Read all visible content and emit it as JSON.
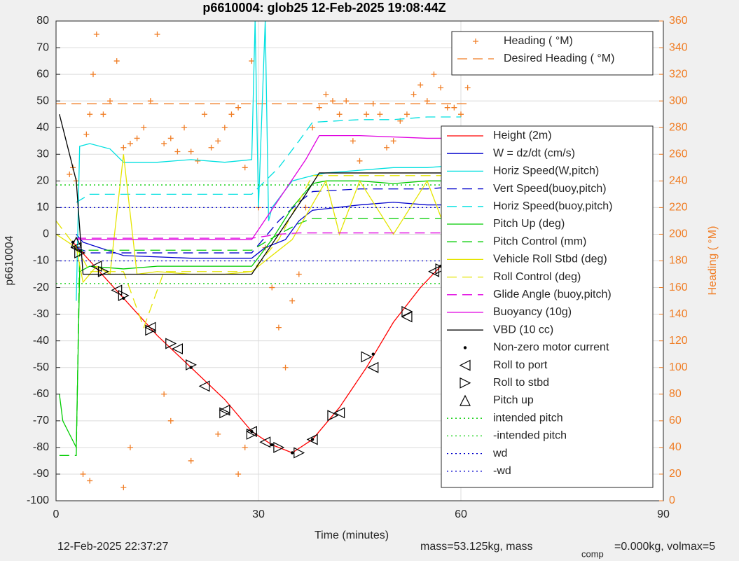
{
  "chart_data": {
    "type": "line",
    "title": "p6610004: glob25 12-Feb-2025 19:08:44Z",
    "x_label": "Time (minutes)",
    "y_label": "p6610004",
    "y2_label": "Heading ( °M)",
    "xlim": [
      0,
      90
    ],
    "xticks": [
      0,
      30,
      60,
      90
    ],
    "ylim": [
      -100,
      80
    ],
    "yticks": [
      -100,
      -90,
      -80,
      -70,
      -60,
      -50,
      -40,
      -30,
      -20,
      -10,
      0,
      10,
      20,
      30,
      40,
      50,
      60,
      70,
      80
    ],
    "y2lim": [
      0,
      360
    ],
    "y2ticks": [
      0,
      20,
      40,
      60,
      80,
      100,
      120,
      140,
      160,
      180,
      200,
      220,
      240,
      260,
      280,
      300,
      320,
      340,
      360
    ],
    "grid": true,
    "legend": "northeast",
    "footer": [
      "12-Feb-2025 22:37:27",
      "mass=53.125kg, mass",
      "comp",
      "=0.000kg, volmax=5"
    ],
    "series": [
      {
        "name": "Heading ( °M)",
        "color": "#f07e26",
        "style": "plus",
        "axis": "y2",
        "x": [
          2,
          2.5,
          3,
          4.5,
          5,
          5.5,
          6,
          7,
          8,
          9,
          10,
          11,
          12,
          13,
          14,
          15,
          16,
          17,
          18,
          19,
          20,
          21,
          22,
          23,
          24,
          25,
          26,
          27,
          28,
          29,
          30,
          31,
          32,
          33,
          34,
          35,
          36,
          37,
          38,
          39,
          40,
          41,
          42,
          43,
          44,
          45,
          46,
          47,
          48,
          49,
          50,
          51,
          52,
          53,
          54,
          55,
          56,
          57,
          58,
          59,
          60,
          61,
          4,
          5,
          10,
          11,
          16,
          17,
          20,
          24,
          27,
          28
        ],
        "values": [
          245,
          250,
          240,
          275,
          290,
          320,
          350,
          290,
          300,
          330,
          265,
          268,
          272,
          280,
          300,
          350,
          268,
          272,
          262,
          280,
          262,
          255,
          290,
          265,
          270,
          280,
          290,
          295,
          250,
          330,
          220,
          190,
          160,
          130,
          100,
          150,
          170,
          220,
          280,
          295,
          305,
          300,
          290,
          300,
          270,
          255,
          290,
          298,
          290,
          265,
          270,
          285,
          290,
          305,
          312,
          300,
          320,
          310,
          295,
          295,
          290,
          310,
          20,
          15,
          10,
          40,
          80,
          60,
          30,
          50,
          20,
          40
        ]
      },
      {
        "name": "Desired Heading (    °M)",
        "color": "#f07e26",
        "style": "dashed",
        "axis": "y2",
        "x": [
          0,
          61
        ],
        "values": [
          298,
          298
        ]
      },
      {
        "name": "Height (2m)",
        "color": "#ff0000",
        "style": "solid",
        "x": [
          2.5,
          5,
          10,
          15,
          20,
          25,
          29,
          32,
          35,
          38,
          42,
          46,
          50,
          54,
          57,
          60
        ],
        "values": [
          -3,
          -10,
          -24,
          -38,
          -50,
          -62,
          -74,
          -79,
          -82,
          -77,
          -65,
          -50,
          -33,
          -20,
          -12,
          -2
        ]
      },
      {
        "name": "W = dz/dt (cm/s)",
        "color": "#0000cc",
        "style": "solid",
        "x": [
          3,
          4,
          10,
          20,
          29,
          31,
          34,
          36,
          38,
          45,
          50,
          55,
          60
        ],
        "values": [
          0,
          -3,
          -8,
          -9,
          -9,
          -5,
          -2,
          5,
          9,
          11,
          12,
          11,
          11
        ]
      },
      {
        "name": "Horiz Speed(W,pitch)",
        "color": "#00e0e0",
        "style": "solid",
        "x": [
          3,
          3.5,
          5,
          8,
          10,
          15,
          20,
          25,
          29,
          29.5,
          30,
          31,
          31.5,
          32,
          35,
          38,
          40,
          45,
          50,
          55,
          60
        ],
        "values": [
          -25,
          33,
          34,
          32,
          27,
          27,
          28,
          27,
          28,
          80,
          10,
          80,
          5,
          10,
          20,
          22,
          23,
          24,
          25,
          25,
          26
        ]
      },
      {
        "name": "Vert Speed(buoy,pitch)",
        "color": "#0000cc",
        "style": "dashed",
        "x": [
          3,
          5,
          15,
          29,
          33,
          36,
          38,
          45,
          50,
          55,
          60
        ],
        "values": [
          -5,
          -7,
          -7,
          -7,
          5,
          12,
          16,
          17,
          17,
          17,
          18
        ]
      },
      {
        "name": "Horiz Speed(buoy,pitch)",
        "color": "#00e0e0",
        "style": "dashed",
        "x": [
          3,
          5,
          15,
          29,
          33,
          36,
          38,
          45,
          50,
          55,
          60
        ],
        "values": [
          12,
          15,
          15,
          15,
          25,
          35,
          42,
          43,
          43,
          44,
          44
        ]
      },
      {
        "name": "Pitch Up (deg)",
        "color": "#00cc00",
        "style": "solid",
        "x": [
          0.5,
          1,
          2,
          3,
          3.5,
          5,
          10,
          15,
          20,
          25,
          29,
          32,
          35,
          38,
          40,
          45,
          50,
          55,
          60
        ],
        "values": [
          -60,
          -70,
          -75,
          -80,
          -14,
          -12,
          -13,
          -12,
          -12,
          -12,
          -12,
          -2,
          10,
          19,
          20,
          20,
          19,
          20,
          20
        ]
      },
      {
        "name": "Pitch Control (mm)",
        "color": "#00cc00",
        "style": "dashed",
        "x": [
          0.5,
          3,
          3.5,
          5,
          29,
          33,
          36,
          38,
          60
        ],
        "values": [
          -83,
          -83,
          -6,
          -6,
          -6,
          0,
          4,
          6,
          6
        ]
      },
      {
        "name": "Vehicle Roll Stbd (deg)",
        "color": "#e5e500",
        "style": "solid",
        "x": [
          0,
          3,
          4,
          6,
          8,
          10,
          12,
          15,
          20,
          25,
          29,
          35,
          40,
          42,
          45,
          50,
          55,
          58,
          60
        ],
        "values": [
          0,
          -5,
          -18,
          -12,
          -15,
          30,
          -15,
          -14,
          -15,
          -15,
          -14,
          -2,
          20,
          0,
          20,
          0,
          20,
          0,
          20
        ]
      },
      {
        "name": "Roll Control (deg)",
        "color": "#e5e500",
        "style": "dashed",
        "x": [
          0,
          3,
          5,
          10,
          13,
          16,
          20,
          25,
          29,
          33,
          38,
          45,
          50,
          55,
          60
        ],
        "values": [
          5,
          -5,
          -14,
          -14,
          -35,
          -14,
          -14,
          -14,
          -14,
          -2,
          22,
          22,
          22,
          22,
          22
        ]
      },
      {
        "name": "Glide Angle (buoy,pitch)",
        "color": "#e000e0",
        "style": "dashed",
        "x": [
          3,
          29,
          33,
          36,
          60
        ],
        "values": [
          -1.5,
          -1.5,
          0,
          0.5,
          0.5
        ]
      },
      {
        "name": "Buoyancy (10g)",
        "color": "#e000e0",
        "style": "solid",
        "x": [
          3,
          29,
          37,
          39,
          45,
          55,
          60
        ],
        "values": [
          -2,
          -2,
          28,
          37,
          37,
          36,
          36
        ]
      },
      {
        "name": "VBD (10 cc)",
        "color": "#000000",
        "style": "solid",
        "x": [
          0.5,
          3,
          4,
          29,
          37,
          39,
          60
        ],
        "values": [
          45,
          20,
          -15,
          -15,
          15,
          23,
          23
        ]
      },
      {
        "name": "Non-zero motor current",
        "color": "#000000",
        "style": "dot",
        "x": [
          2.5,
          10,
          20,
          29,
          32,
          35,
          38,
          47,
          57,
          60
        ],
        "values": [
          -3,
          -24,
          -50,
          -74,
          -79,
          -82,
          -77,
          -45,
          -12,
          -2
        ]
      },
      {
        "name": "Roll to port",
        "color": "#000000",
        "style": "tri-left",
        "x": [
          3,
          6,
          9,
          14,
          18,
          22,
          25,
          29,
          31,
          38,
          42,
          47,
          52,
          56,
          60
        ],
        "values": [
          -5,
          -12,
          -21,
          -35,
          -43,
          -57,
          -66,
          -74,
          -78,
          -77,
          -67,
          -50,
          -31,
          -14,
          -3
        ]
      },
      {
        "name": "Roll to stbd",
        "color": "#000000",
        "style": "tri-right",
        "x": [
          3.5,
          7,
          10,
          14,
          17,
          20,
          25,
          29,
          33,
          36,
          41,
          46,
          52,
          57,
          60.5
        ],
        "values": [
          -7,
          -14,
          -23,
          -36,
          -41,
          -49,
          -67,
          -75,
          -80,
          -82,
          -68,
          -46,
          -29,
          -13,
          -2
        ]
      },
      {
        "name": "Pitch up",
        "color": "#000000",
        "style": "tri-up",
        "x": [
          3,
          60
        ],
        "values": [
          -3,
          -3
        ]
      },
      {
        "name": "intended pitch",
        "color": "#00cc00",
        "style": "dotted",
        "x": [
          0,
          61
        ],
        "values": [
          18.5,
          18.5
        ]
      },
      {
        "name": "-intended pitch",
        "color": "#00cc00",
        "style": "dotted",
        "x": [
          0,
          61
        ],
        "values": [
          -18.5,
          -18.5
        ]
      },
      {
        "name": "wd",
        "color": "#0000cc",
        "style": "dotted",
        "x": [
          0,
          61
        ],
        "values": [
          10,
          10
        ]
      },
      {
        "name": "-wd",
        "color": "#0000cc",
        "style": "dotted",
        "x": [
          0,
          61
        ],
        "values": [
          -10,
          -10
        ]
      }
    ]
  }
}
